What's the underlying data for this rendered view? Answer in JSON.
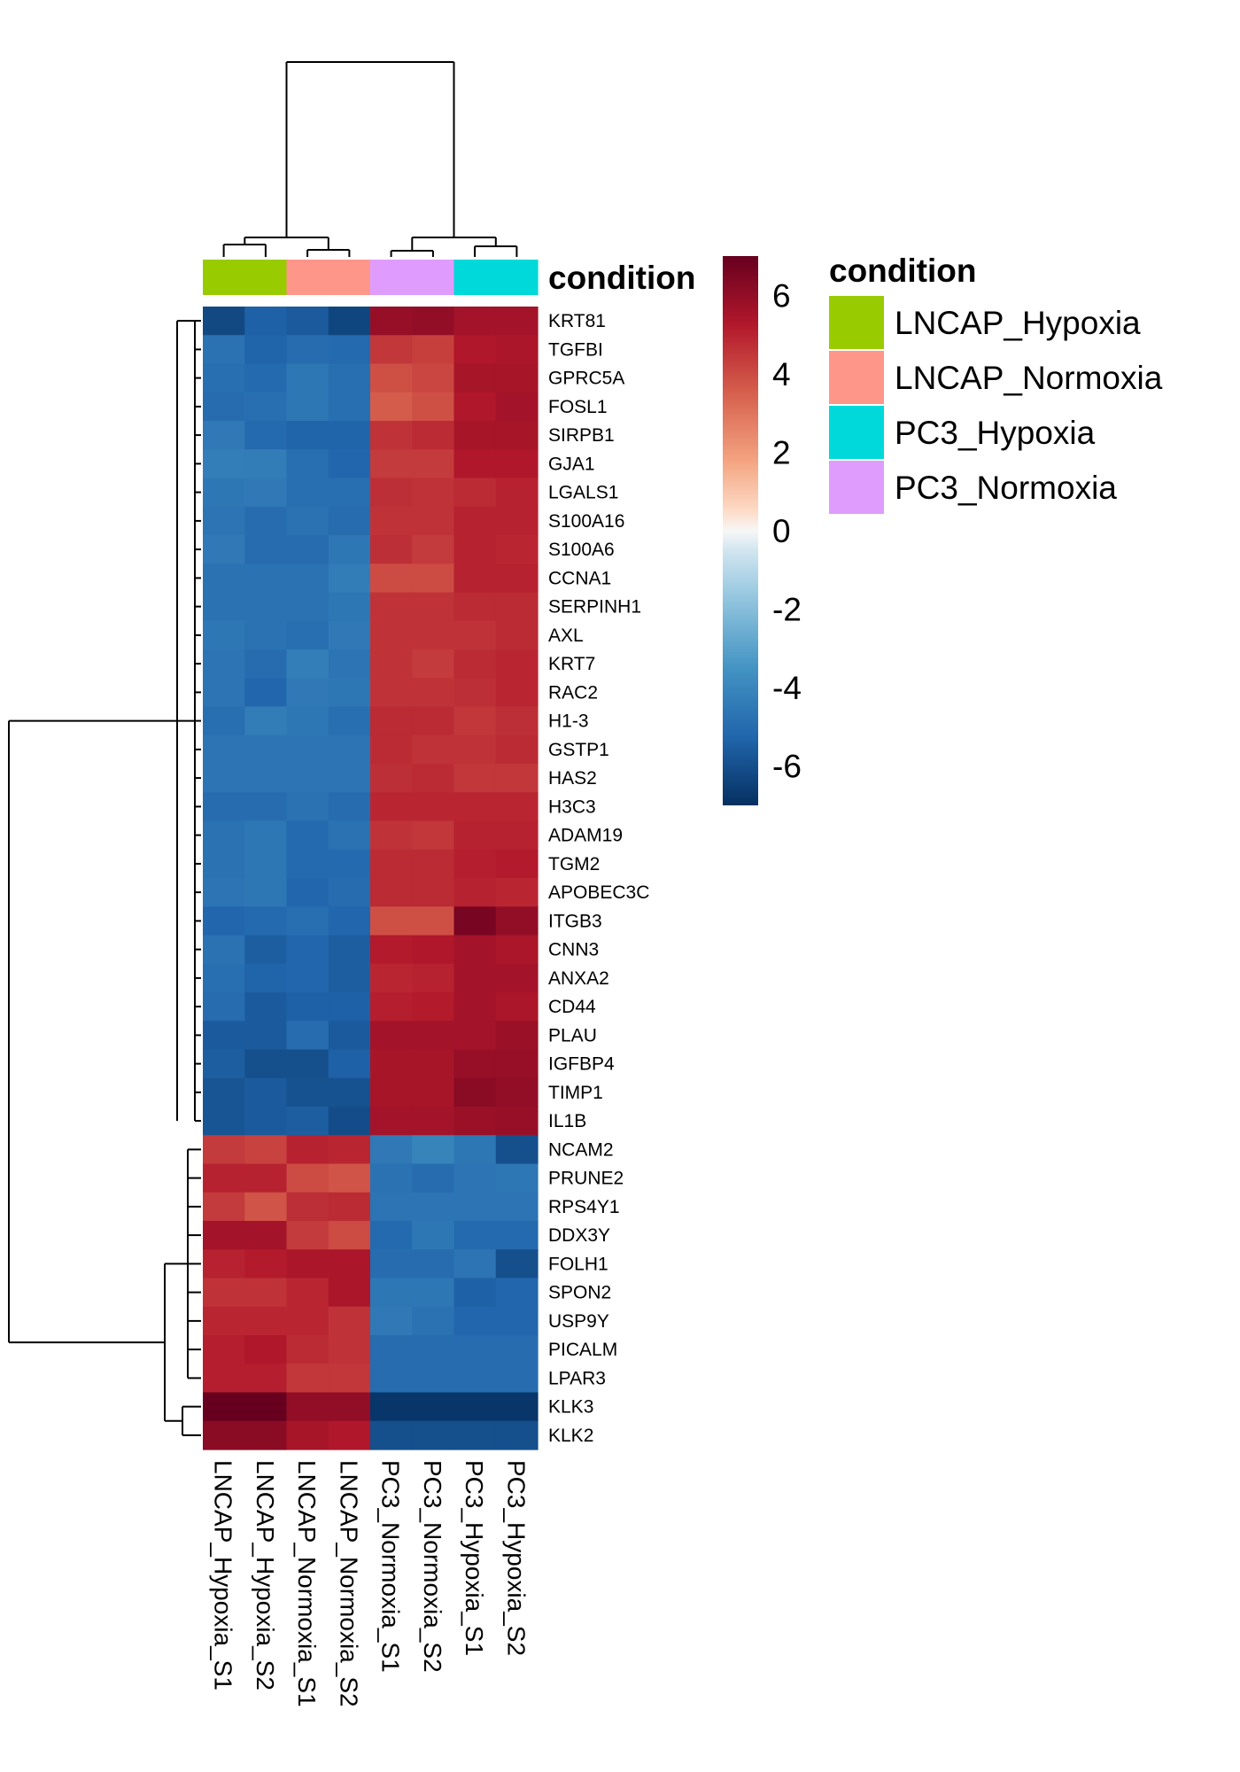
{
  "chart_data": {
    "type": "heatmap",
    "columns": [
      "LNCAP_Hypoxia_S1",
      "LNCAP_Hypoxia_S2",
      "LNCAP_Normoxia_S1",
      "LNCAP_Normoxia_S2",
      "PC3_Normoxia_S1",
      "PC3_Normoxia_S2",
      "PC3_Hypoxia_S1",
      "PC3_Hypoxia_S2"
    ],
    "column_condition": [
      "LNCAP_Hypoxia",
      "LNCAP_Hypoxia",
      "LNCAP_Normoxia",
      "LNCAP_Normoxia",
      "PC3_Normoxia",
      "PC3_Normoxia",
      "PC3_Hypoxia",
      "PC3_Hypoxia"
    ],
    "rows": [
      "KRT81",
      "TGFBI",
      "GPRC5A",
      "FOSL1",
      "SIRPB1",
      "GJA1",
      "LGALS1",
      "S100A16",
      "S100A6",
      "CCNA1",
      "SERPINH1",
      "AXL",
      "KRT7",
      "RAC2",
      "H1-3",
      "GSTP1",
      "HAS2",
      "H3C3",
      "ADAM19",
      "TGM2",
      "APOBEC3C",
      "ITGB3",
      "CNN3",
      "ANXA2",
      "CD44",
      "PLAU",
      "IGFBP4",
      "TIMP1",
      "IL1B",
      "NCAM2",
      "PRUNE2",
      "RPS4Y1",
      "DDX3Y",
      "FOLH1",
      "SPON2",
      "USP9Y",
      "PICALM",
      "LPAR3",
      "KLK3",
      "KLK2"
    ],
    "values": [
      [
        -6.2,
        -5.4,
        -5.6,
        -6.3,
        5.9,
        6.0,
        5.6,
        5.6
      ],
      [
        -4.8,
        -5.3,
        -5.0,
        -5.1,
        4.5,
        4.3,
        5.3,
        5.4
      ],
      [
        -4.9,
        -5.1,
        -4.6,
        -4.9,
        3.9,
        4.1,
        5.5,
        5.5
      ],
      [
        -5.0,
        -4.9,
        -4.6,
        -4.9,
        3.6,
        3.9,
        5.3,
        5.6
      ],
      [
        -4.5,
        -5.1,
        -5.3,
        -5.3,
        4.6,
        4.8,
        5.5,
        5.5
      ],
      [
        -4.3,
        -4.4,
        -4.9,
        -5.2,
        4.4,
        4.4,
        5.3,
        5.3
      ],
      [
        -4.6,
        -4.5,
        -4.9,
        -4.9,
        4.7,
        4.6,
        4.8,
        5.0
      ],
      [
        -4.7,
        -5.0,
        -4.8,
        -5.0,
        4.6,
        4.6,
        5.0,
        5.0
      ],
      [
        -4.5,
        -5.0,
        -5.0,
        -4.6,
        4.7,
        4.4,
        5.0,
        4.9
      ],
      [
        -4.8,
        -4.8,
        -4.8,
        -4.4,
        4.0,
        4.0,
        5.0,
        5.0
      ],
      [
        -4.8,
        -4.8,
        -4.8,
        -4.6,
        4.6,
        4.6,
        4.8,
        4.8
      ],
      [
        -4.6,
        -4.8,
        -4.9,
        -4.5,
        4.6,
        4.6,
        4.6,
        4.8
      ],
      [
        -4.7,
        -5.0,
        -4.3,
        -4.7,
        4.6,
        4.4,
        4.8,
        4.9
      ],
      [
        -4.7,
        -5.2,
        -4.5,
        -4.6,
        4.6,
        4.6,
        4.7,
        4.9
      ],
      [
        -4.9,
        -4.4,
        -4.6,
        -4.9,
        4.8,
        4.8,
        4.5,
        4.7
      ],
      [
        -4.7,
        -4.7,
        -4.7,
        -4.7,
        4.8,
        4.6,
        4.6,
        4.8
      ],
      [
        -4.7,
        -4.7,
        -4.7,
        -4.7,
        4.7,
        4.8,
        4.5,
        4.5
      ],
      [
        -5.0,
        -5.0,
        -4.8,
        -5.0,
        4.9,
        4.9,
        4.9,
        4.9
      ],
      [
        -4.8,
        -4.6,
        -5.1,
        -4.8,
        4.6,
        4.5,
        5.0,
        5.0
      ],
      [
        -4.8,
        -4.6,
        -5.1,
        -5.1,
        4.8,
        4.8,
        5.1,
        5.2
      ],
      [
        -4.7,
        -4.6,
        -5.2,
        -5.0,
        4.8,
        4.8,
        5.0,
        4.9
      ],
      [
        -5.2,
        -5.1,
        -4.9,
        -5.2,
        3.9,
        3.9,
        6.6,
        6.0
      ],
      [
        -4.8,
        -5.5,
        -5.2,
        -5.5,
        5.2,
        5.3,
        5.6,
        5.4
      ],
      [
        -4.9,
        -5.3,
        -5.2,
        -5.5,
        4.9,
        5.0,
        5.6,
        5.6
      ],
      [
        -5.0,
        -5.6,
        -5.4,
        -5.4,
        5.1,
        5.2,
        5.6,
        5.4
      ],
      [
        -5.6,
        -5.6,
        -5.0,
        -5.6,
        5.6,
        5.6,
        5.6,
        5.8
      ],
      [
        -5.5,
        -6.0,
        -6.0,
        -5.4,
        5.5,
        5.5,
        5.9,
        5.9
      ],
      [
        -5.8,
        -5.6,
        -5.9,
        -5.9,
        5.5,
        5.5,
        6.2,
        6.0
      ],
      [
        -5.8,
        -5.6,
        -5.5,
        -6.1,
        5.6,
        5.6,
        5.8,
        5.9
      ],
      [
        4.4,
        4.2,
        5.0,
        4.9,
        -4.5,
        -4.1,
        -4.6,
        -6.0
      ],
      [
        5.0,
        5.0,
        4.0,
        3.8,
        -4.8,
        -5.0,
        -4.7,
        -4.6
      ],
      [
        4.4,
        3.8,
        4.7,
        4.8,
        -4.7,
        -4.7,
        -4.7,
        -4.7
      ],
      [
        5.6,
        5.6,
        4.4,
        4.0,
        -5.1,
        -4.6,
        -5.1,
        -5.1
      ],
      [
        5.0,
        5.2,
        5.4,
        5.4,
        -5.0,
        -5.0,
        -4.7,
        -6.0
      ],
      [
        4.6,
        4.6,
        4.9,
        5.4,
        -4.6,
        -4.6,
        -5.4,
        -5.2
      ],
      [
        4.9,
        4.9,
        4.9,
        4.6,
        -4.5,
        -4.8,
        -5.2,
        -5.2
      ],
      [
        5.1,
        5.3,
        4.8,
        4.6,
        -5.0,
        -5.0,
        -5.0,
        -5.0
      ],
      [
        5.1,
        5.1,
        4.5,
        4.5,
        -5.0,
        -5.0,
        -5.0,
        -5.0
      ],
      [
        7.0,
        7.0,
        6.0,
        6.0,
        -6.8,
        -6.8,
        -6.8,
        -6.8
      ],
      [
        6.2,
        6.2,
        5.5,
        5.3,
        -6.0,
        -6.0,
        -6.0,
        -6.0
      ]
    ],
    "color_scale": {
      "min": -7,
      "max": 7,
      "ticks": [
        6,
        4,
        2,
        0,
        -2,
        -4,
        -6
      ],
      "stops": [
        {
          "v": -7,
          "c": "#053061"
        },
        {
          "v": -5.25,
          "c": "#2166ac"
        },
        {
          "v": -3.5,
          "c": "#4393c3"
        },
        {
          "v": -1.75,
          "c": "#92c5de"
        },
        {
          "v": -0.5,
          "c": "#d1e5f0"
        },
        {
          "v": 0,
          "c": "#f7f7f7"
        },
        {
          "v": 0.5,
          "c": "#fddbc7"
        },
        {
          "v": 1.75,
          "c": "#f4a582"
        },
        {
          "v": 3.5,
          "c": "#d6604d"
        },
        {
          "v": 5.25,
          "c": "#b2182b"
        },
        {
          "v": 7,
          "c": "#67001f"
        }
      ]
    },
    "annotation": {
      "title": "condition",
      "legend_title": "condition",
      "levels": [
        {
          "name": "LNCAP_Hypoxia",
          "color": "#99cc00"
        },
        {
          "name": "LNCAP_Normoxia",
          "color": "#ff968a"
        },
        {
          "name": "PC3_Hypoxia",
          "color": "#00d9d9"
        },
        {
          "name": "PC3_Normoxia",
          "color": "#df9cfc"
        }
      ]
    },
    "row_dendrogram": true,
    "column_dendrogram": true
  }
}
